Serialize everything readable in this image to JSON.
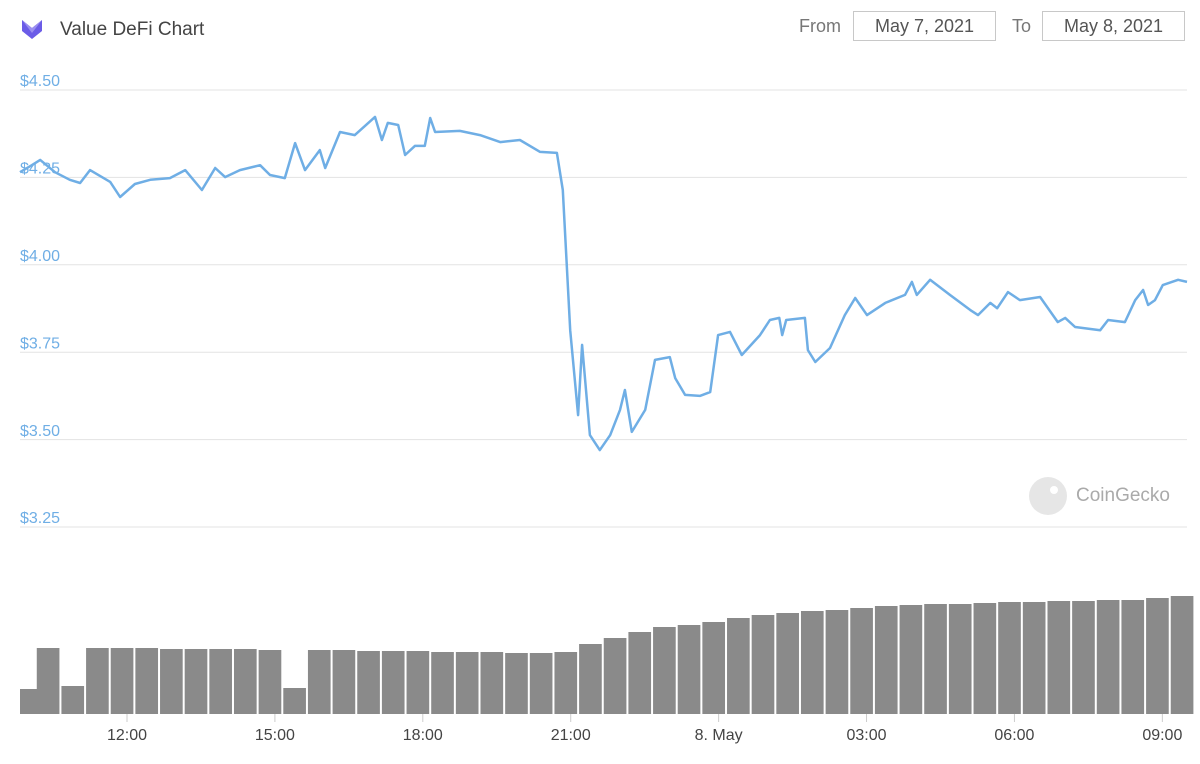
{
  "controls": {
    "from_label": "From",
    "from_value": "May 7, 2021",
    "to_label": "To",
    "to_value": "May 8, 2021"
  },
  "chart_data": [
    {
      "type": "line",
      "title": "Value DeFi Chart",
      "watermark": "CoinGecko",
      "color": "#6faee5",
      "x": [
        9.83,
        10.07,
        10.24,
        10.54,
        10.84,
        11.05,
        11.25,
        11.66,
        11.86,
        12.16,
        12.47,
        12.87,
        13.18,
        13.52,
        13.79,
        13.99,
        14.29,
        14.7,
        14.9,
        15.2,
        15.41,
        15.61,
        15.91,
        16.02,
        16.32,
        16.62,
        17.03,
        17.17,
        17.29,
        17.5,
        17.64,
        17.84,
        18.04,
        18.15,
        18.25,
        18.75,
        19.16,
        19.57,
        19.97,
        20.38,
        20.72,
        20.84,
        20.99,
        21.15,
        21.23,
        21.39,
        21.59,
        21.8,
        22.0,
        22.1,
        22.24,
        22.51,
        22.71,
        23.01,
        23.12,
        23.32,
        23.62,
        23.83,
        23.99,
        24.23,
        24.47,
        24.84,
        25.04,
        25.23,
        25.29,
        25.37,
        25.75,
        25.81,
        25.96,
        26.26,
        26.56,
        26.77,
        27.01,
        27.38,
        27.78,
        27.92,
        28.02,
        28.29,
        28.69,
        29.1,
        29.26,
        29.51,
        29.65,
        29.87,
        30.11,
        30.52,
        30.88,
        31.03,
        31.23,
        31.74,
        31.9,
        32.24,
        32.45,
        32.61,
        32.71,
        32.85,
        33.01,
        33.32,
        33.5
      ],
      "values": [
        4.265,
        4.285,
        4.3,
        4.265,
        4.243,
        4.234,
        4.271,
        4.237,
        4.194,
        4.231,
        4.243,
        4.248,
        4.271,
        4.214,
        4.277,
        4.251,
        4.271,
        4.285,
        4.257,
        4.248,
        4.348,
        4.271,
        4.328,
        4.277,
        4.38,
        4.371,
        4.423,
        4.357,
        4.406,
        4.4,
        4.314,
        4.34,
        4.34,
        4.42,
        4.38,
        4.383,
        4.371,
        4.351,
        4.357,
        4.323,
        4.32,
        4.214,
        3.813,
        3.57,
        3.771,
        3.513,
        3.47,
        3.513,
        3.585,
        3.642,
        3.522,
        3.585,
        3.728,
        3.736,
        3.676,
        3.628,
        3.625,
        3.636,
        3.799,
        3.808,
        3.742,
        3.799,
        3.842,
        3.848,
        3.799,
        3.842,
        3.848,
        3.756,
        3.722,
        3.762,
        3.856,
        3.905,
        3.856,
        3.891,
        3.914,
        3.951,
        3.914,
        3.957,
        3.914,
        3.871,
        3.856,
        3.891,
        3.876,
        3.922,
        3.899,
        3.908,
        3.836,
        3.848,
        3.822,
        3.813,
        3.842,
        3.836,
        3.899,
        3.928,
        3.885,
        3.899,
        3.942,
        3.957,
        3.951
      ],
      "xlim": [
        9.83,
        33.5
      ],
      "xticks": [
        {
          "value": 12,
          "label": "12:00"
        },
        {
          "value": 15,
          "label": "15:00"
        },
        {
          "value": 18,
          "label": "18:00"
        },
        {
          "value": 21,
          "label": "21:00"
        },
        {
          "value": 24,
          "label": "8. May"
        },
        {
          "value": 27,
          "label": "03:00"
        },
        {
          "value": 30,
          "label": "06:00"
        },
        {
          "value": 33,
          "label": "09:00"
        }
      ],
      "ylim": [
        3.25,
        4.5
      ],
      "yticks": [
        {
          "value": 3.25,
          "label": "$3.25"
        },
        {
          "value": 3.5,
          "label": "$3.50"
        },
        {
          "value": 3.75,
          "label": "$3.75"
        },
        {
          "value": 4,
          "label": "$4.00"
        },
        {
          "value": 4.25,
          "label": "$4.25"
        },
        {
          "value": 4.5,
          "label": "$4.50"
        }
      ],
      "grid": true
    },
    {
      "type": "bar",
      "color": "#8a8a8a",
      "x": [
        9.9,
        10.4,
        10.9,
        11.4,
        11.9,
        12.4,
        12.9,
        13.4,
        13.9,
        14.4,
        14.9,
        15.4,
        15.9,
        16.4,
        16.9,
        17.4,
        17.9,
        18.4,
        18.9,
        19.4,
        19.9,
        20.4,
        20.9,
        21.4,
        21.9,
        22.4,
        22.9,
        23.4,
        23.9,
        24.4,
        24.9,
        25.4,
        25.9,
        26.4,
        26.9,
        27.4,
        27.9,
        28.4,
        28.9,
        29.4,
        29.9,
        30.4,
        30.9,
        31.4,
        31.9,
        32.4,
        32.9,
        33.4
      ],
      "values": [
        25,
        66,
        28,
        66,
        66,
        66,
        65,
        65,
        65,
        65,
        64,
        26,
        64,
        64,
        63,
        63,
        63,
        62,
        62,
        62,
        61,
        61,
        62,
        70,
        76,
        82,
        87,
        89,
        92,
        96,
        99,
        101,
        103,
        104,
        106,
        108,
        109,
        110,
        110,
        111,
        112,
        112,
        113,
        113,
        114,
        114,
        116,
        118
      ],
      "xlim": [
        9.83,
        33.5
      ],
      "ylim": [
        0,
        130
      ]
    }
  ]
}
